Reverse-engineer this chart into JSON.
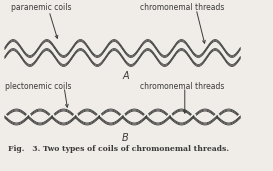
{
  "title": "Fig.   3. Two types of coils of chromonemal threads.",
  "label_A": "A",
  "label_B": "B",
  "label_paranemic": "paranemic coils",
  "label_plectonemic": "plectonemic coils",
  "label_chromonemal_A": "chromonemal threads",
  "label_chromonemal_B": "chromonemal threads",
  "bg_color": "#f0ede8",
  "line_color": "#3a3a3a",
  "figsize": [
    2.73,
    1.71
  ],
  "dpi": 100,
  "arrow_color": "#3a3a3a"
}
